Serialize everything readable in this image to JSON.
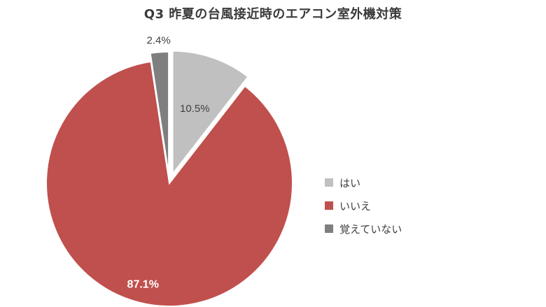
{
  "chart_data": {
    "type": "pie",
    "title": "Q3 昨夏の台風接近時のエアコン室外機対策",
    "categories": [
      "はい",
      "いいえ",
      "覚えていない"
    ],
    "values": [
      10.5,
      87.1,
      2.4
    ],
    "data_labels": [
      "10.5%",
      "87.1%",
      "2.4%"
    ],
    "colors": [
      "#c0c0c0",
      "#c0504d",
      "#7f7f7f"
    ],
    "label_colors": [
      "#404040",
      "#ffffff",
      "#404040"
    ],
    "exploded": true,
    "start_angle_deg": 0,
    "direction": "clockwise",
    "legend_position": "right"
  }
}
